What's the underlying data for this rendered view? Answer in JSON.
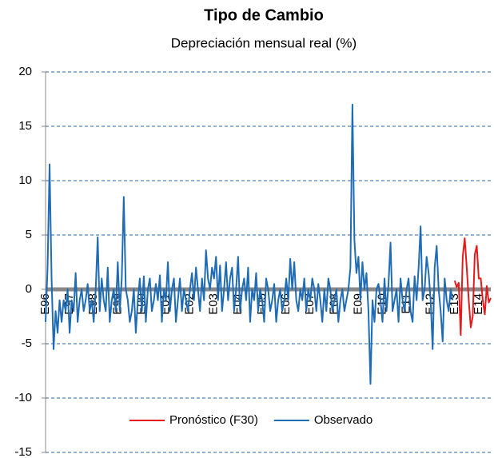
{
  "chart_data": {
    "type": "line",
    "title": "Tipo de Cambio",
    "subtitle": "Depreciación mensual real (%)",
    "ylim": [
      -15,
      20
    ],
    "yticks": [
      -15,
      -10,
      -5,
      0,
      5,
      10,
      15,
      20
    ],
    "grid": true,
    "legend": "bottom",
    "categories": [
      "E96",
      null,
      null,
      null,
      null,
      null,
      null,
      null,
      null,
      null,
      null,
      null,
      "E97",
      null,
      null,
      null,
      null,
      null,
      null,
      null,
      null,
      null,
      null,
      null,
      "E98",
      null,
      null,
      null,
      null,
      null,
      null,
      null,
      null,
      null,
      null,
      null,
      "E99",
      null,
      null,
      null,
      null,
      null,
      null,
      null,
      null,
      null,
      null,
      null,
      "E00",
      null,
      null,
      null,
      null,
      null,
      null,
      null,
      null,
      null,
      null,
      null,
      "E01",
      null,
      null,
      null,
      null,
      null,
      null,
      null,
      null,
      null,
      null,
      null,
      "E02",
      null,
      null,
      null,
      null,
      null,
      null,
      null,
      null,
      null,
      null,
      null,
      "E03",
      null,
      null,
      null,
      null,
      null,
      null,
      null,
      null,
      null,
      null,
      null,
      "E04",
      null,
      null,
      null,
      null,
      null,
      null,
      null,
      null,
      null,
      null,
      null,
      "E05",
      null,
      null,
      null,
      null,
      null,
      null,
      null,
      null,
      null,
      null,
      null,
      "E06",
      null,
      null,
      null,
      null,
      null,
      null,
      null,
      null,
      null,
      null,
      null,
      "E07",
      null,
      null,
      null,
      null,
      null,
      null,
      null,
      null,
      null,
      null,
      null,
      "E08",
      null,
      null,
      null,
      null,
      null,
      null,
      null,
      null,
      null,
      null,
      null,
      "E09",
      null,
      null,
      null,
      null,
      null,
      null,
      null,
      null,
      null,
      null,
      null,
      "E10",
      null,
      null,
      null,
      null,
      null,
      null,
      null,
      null,
      null,
      null,
      null,
      "E11",
      null,
      null,
      null,
      null,
      null,
      null,
      null,
      null,
      null,
      null,
      null,
      "E12",
      null,
      null,
      null,
      null,
      null,
      null,
      null,
      null,
      null,
      null,
      null,
      "E13",
      null,
      null,
      null,
      null,
      null,
      null,
      null,
      null,
      null,
      null,
      null,
      "E14",
      null,
      null,
      null,
      null,
      null,
      null
    ],
    "series": [
      {
        "name": "Pronóstico (F30)",
        "color": "#e41a1c",
        "values": [
          null,
          null,
          null,
          null,
          null,
          null,
          null,
          null,
          null,
          null,
          null,
          null,
          null,
          null,
          null,
          null,
          null,
          null,
          null,
          null,
          null,
          null,
          null,
          null,
          null,
          null,
          null,
          null,
          null,
          null,
          null,
          null,
          null,
          null,
          null,
          null,
          null,
          null,
          null,
          null,
          null,
          null,
          null,
          null,
          null,
          null,
          null,
          null,
          null,
          null,
          null,
          null,
          null,
          null,
          null,
          null,
          null,
          null,
          null,
          null,
          null,
          null,
          null,
          null,
          null,
          null,
          null,
          null,
          null,
          null,
          null,
          null,
          null,
          null,
          null,
          null,
          null,
          null,
          null,
          null,
          null,
          null,
          null,
          null,
          null,
          null,
          null,
          null,
          null,
          null,
          null,
          null,
          null,
          null,
          null,
          null,
          null,
          null,
          null,
          null,
          null,
          null,
          null,
          null,
          null,
          null,
          null,
          null,
          null,
          null,
          null,
          null,
          null,
          null,
          null,
          null,
          null,
          null,
          null,
          null,
          null,
          null,
          null,
          null,
          null,
          null,
          null,
          null,
          null,
          null,
          null,
          null,
          null,
          null,
          null,
          null,
          null,
          null,
          null,
          null,
          null,
          null,
          null,
          null,
          null,
          null,
          null,
          null,
          null,
          null,
          null,
          null,
          null,
          null,
          null,
          null,
          null,
          null,
          null,
          null,
          null,
          null,
          null,
          null,
          null,
          null,
          null,
          null,
          null,
          null,
          null,
          null,
          null,
          null,
          null,
          null,
          null,
          null,
          null,
          null,
          null,
          null,
          null,
          null,
          null,
          null,
          null,
          null,
          null,
          null,
          null,
          null,
          null,
          null,
          null,
          null,
          null,
          null,
          null,
          null,
          null,
          null,
          null,
          null,
          0.8,
          0.2,
          0.6,
          -4.2,
          3,
          4.7,
          2,
          -1,
          -3.5,
          -2.5,
          3.2,
          4,
          1,
          1,
          -1,
          -2.3,
          0.3,
          -1.2,
          -0.8
        ]
      },
      {
        "name": "Observado",
        "color": "#1f6cb5",
        "values": [
          -3,
          2,
          11.5,
          1,
          -5.5,
          -2,
          -4,
          -1,
          -3,
          -1,
          -2,
          0,
          -4,
          -1,
          -2,
          1.5,
          -3,
          -1,
          0,
          -2,
          -1,
          0.5,
          -2,
          -1,
          -3,
          0,
          4.8,
          -2,
          1,
          -1,
          -2,
          2,
          -3,
          -1,
          0,
          -2,
          2.5,
          -2,
          1,
          8.5,
          0,
          -1,
          -3,
          -2,
          0,
          -4,
          -1,
          1,
          -2,
          1.2,
          -3,
          0,
          1,
          -2,
          -1,
          0.5,
          -1,
          1.3,
          -3,
          0,
          -1,
          2.5,
          -2,
          0,
          1,
          -3,
          -1,
          1,
          -2,
          0,
          -1,
          -2,
          0,
          1.5,
          -1,
          2,
          0,
          -2,
          1,
          -1,
          3.6,
          1,
          0,
          2,
          1,
          3,
          -1,
          2.2,
          -2,
          0,
          2.5,
          -1,
          1,
          2,
          -2,
          0,
          3,
          -2,
          0,
          1,
          -1,
          2,
          -3,
          0,
          -1,
          1.5,
          -2,
          0,
          -1,
          -3,
          1,
          0,
          -2,
          -1,
          0.5,
          -3,
          -1,
          0,
          -2,
          -1,
          1,
          -1,
          2.8,
          0,
          2.5,
          -1,
          -2,
          0,
          -1,
          1,
          -2,
          0,
          -1,
          1,
          0,
          -2,
          0.5,
          -1,
          -3,
          0,
          -2,
          1,
          0,
          -2,
          -1,
          0,
          -3,
          -1,
          0,
          -2,
          -1,
          0,
          2,
          17,
          4.5,
          1.5,
          3,
          -1,
          2.5,
          0,
          1.5,
          -2,
          -8.7,
          -1,
          -3,
          0,
          0.5,
          -1,
          -3,
          1,
          -2,
          0.5,
          4.3,
          -2,
          -1,
          0,
          -3,
          1,
          -1,
          -2,
          0,
          1,
          -2,
          -3,
          1.2,
          -1,
          2,
          5.8,
          -1,
          0,
          3,
          1.5,
          -1,
          -5.5,
          2,
          4,
          0,
          -2,
          -4.8,
          1,
          -1,
          -2,
          0,
          -1,
          null,
          null,
          null,
          null,
          null,
          null,
          null,
          null,
          null,
          null,
          null,
          null,
          null,
          null,
          null,
          null,
          null,
          null,
          null
        ]
      }
    ]
  }
}
